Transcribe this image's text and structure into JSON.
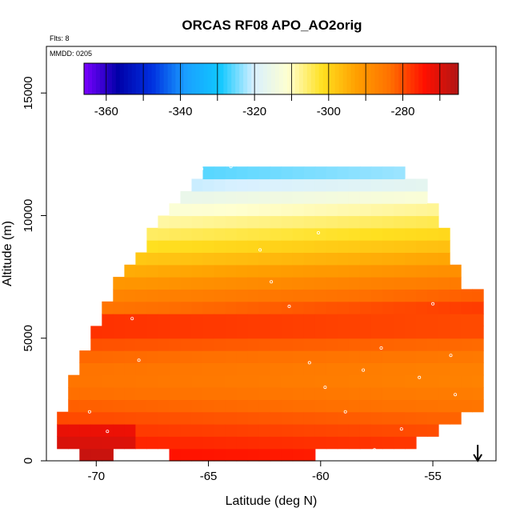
{
  "chart_data": {
    "type": "heatmap",
    "title": "ORCAS RF08 APO_AO2orig",
    "subtitle_flights": "Flts: 8",
    "subtitle_date": "MMDD: 0205",
    "xlabel": "Latitude (deg N)",
    "ylabel": "Altitude (m)",
    "xlim": [
      -72,
      -52
    ],
    "ylim": [
      0,
      16500
    ],
    "x_ticks": [
      -70,
      -65,
      -60,
      -55
    ],
    "x_tick_labels": [
      "-70",
      "-65",
      "-60",
      "-55"
    ],
    "y_ticks": [
      0,
      5000,
      10000,
      15000
    ],
    "y_tick_labels": [
      "0",
      "5000",
      "10000",
      "15000"
    ],
    "colorbar": {
      "range": [
        -366,
        -265
      ],
      "ticks": [
        -360,
        -340,
        -320,
        -300,
        -280
      ],
      "tick_labels": [
        "-360",
        "-340",
        "-320",
        "-300",
        "-280"
      ],
      "colors": [
        "#7a00ff",
        "#0000a8",
        "#0030e0",
        "#1aa0ff",
        "#10c8ff",
        "#d8f0ff",
        "#ffffd0",
        "#ffe020",
        "#ffa000",
        "#ff7000",
        "#ff1000",
        "#b01515"
      ]
    },
    "field_layers": [
      {
        "altitude": 0,
        "value": -274
      },
      {
        "altitude": 1000,
        "value": -278
      },
      {
        "altitude": 2500,
        "value": -284
      },
      {
        "altitude": 3500,
        "value": -286
      },
      {
        "altitude": 4500,
        "value": -283
      },
      {
        "altitude": 5500,
        "value": -277
      },
      {
        "altitude": 6500,
        "value": -283
      },
      {
        "altitude": 7500,
        "value": -290
      },
      {
        "altitude": 8500,
        "value": -298
      },
      {
        "altitude": 9500,
        "value": -305
      },
      {
        "altitude": 10500,
        "value": -312
      },
      {
        "altitude": 11500,
        "value": -322
      },
      {
        "altitude": 12200,
        "value": -330
      }
    ],
    "coverage_envelope": {
      "latitudes": [
        -71.5,
        -70.5,
        -69.5,
        -68.5,
        -67.5,
        -66.5,
        -65.5,
        -64.5,
        -63.5,
        -62.5,
        -61.5,
        -60.5,
        -59.5,
        -58.5,
        -57.5,
        -56.5,
        -55.5,
        -54.5,
        -53.5
      ],
      "top_altitudes": [
        2200,
        4500,
        6500,
        8000,
        9300,
        10700,
        11700,
        11800,
        11900,
        11900,
        11900,
        12000,
        12100,
        12100,
        12100,
        12100,
        11300,
        9500,
        6800
      ],
      "bottom_altitudes": [
        300,
        250,
        250,
        300,
        300,
        250,
        250,
        250,
        250,
        250,
        250,
        250,
        300,
        300,
        300,
        500,
        800,
        1500,
        2000
      ]
    },
    "samples": [
      {
        "lat": -70.3,
        "alt": 2000
      },
      {
        "lat": -69.5,
        "alt": 1200
      },
      {
        "lat": -70.9,
        "alt": 300
      },
      {
        "lat": -68.4,
        "alt": 5800
      },
      {
        "lat": -68.1,
        "alt": 4100
      },
      {
        "lat": -66.5,
        "alt": 11600
      },
      {
        "lat": -65.3,
        "alt": 11900
      },
      {
        "lat": -64.0,
        "alt": 12000
      },
      {
        "lat": -62.7,
        "alt": 8600
      },
      {
        "lat": -62.2,
        "alt": 7300
      },
      {
        "lat": -61.4,
        "alt": 6300
      },
      {
        "lat": -60.5,
        "alt": 4000
      },
      {
        "lat": -59.8,
        "alt": 3000
      },
      {
        "lat": -58.9,
        "alt": 2000
      },
      {
        "lat": -58.1,
        "alt": 3700
      },
      {
        "lat": -57.3,
        "alt": 4600
      },
      {
        "lat": -56.4,
        "alt": 1300
      },
      {
        "lat": -55.6,
        "alt": 3400
      },
      {
        "lat": -55.0,
        "alt": 6400
      },
      {
        "lat": -54.2,
        "alt": 4300
      },
      {
        "lat": -54.0,
        "alt": 2700
      },
      {
        "lat": -59.4,
        "alt": 350
      },
      {
        "lat": -57.6,
        "alt": 450
      },
      {
        "lat": -60.1,
        "alt": 9300
      }
    ],
    "flight_marker_lat": -53.0
  }
}
